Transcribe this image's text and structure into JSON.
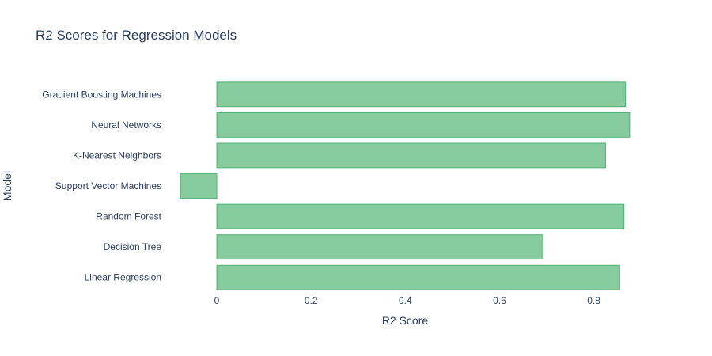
{
  "chart_data": {
    "type": "bar",
    "orientation": "horizontal",
    "title": "R2 Scores for Regression Models",
    "xlabel": "R2 Score",
    "ylabel": "Model",
    "categories": [
      "Linear Regression",
      "Decision Tree",
      "Random Forest",
      "Support Vector Machines",
      "K-Nearest Neighbors",
      "Neural Networks",
      "Gradient Boosting Machines"
    ],
    "values": [
      0.855,
      0.692,
      0.864,
      -0.077,
      0.825,
      0.876,
      0.867
    ],
    "xlim": [
      -0.089,
      0.888
    ],
    "xticks": [
      "0",
      "0.2",
      "0.4",
      "0.6",
      "0.8"
    ],
    "xtick_values": [
      0,
      0.2,
      0.4,
      0.6,
      0.8
    ],
    "grid": false,
    "legend": "none",
    "colors": {
      "bar_fill": "#87cc9e",
      "bar_stroke": "#54b074",
      "text": "#2a3f5f"
    }
  }
}
